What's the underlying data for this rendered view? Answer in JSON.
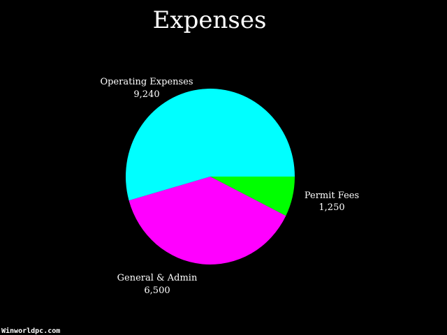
{
  "chart_data": {
    "type": "pie",
    "title": "Expenses",
    "slices": [
      {
        "label": "Permit Fees",
        "value": 1250,
        "display_value": "1,250",
        "color": "#00ff00"
      },
      {
        "label": "General & Admin",
        "value": 6500,
        "display_value": "6,500",
        "color": "#ff00ff"
      },
      {
        "label": "Operating Expenses",
        "value": 9240,
        "display_value": "9,240",
        "color": "#00ffff"
      }
    ],
    "start": "3 o'clock",
    "direction": "clockwise",
    "legend": "none",
    "background": "#000000"
  },
  "watermark": "Winworldpc.com"
}
